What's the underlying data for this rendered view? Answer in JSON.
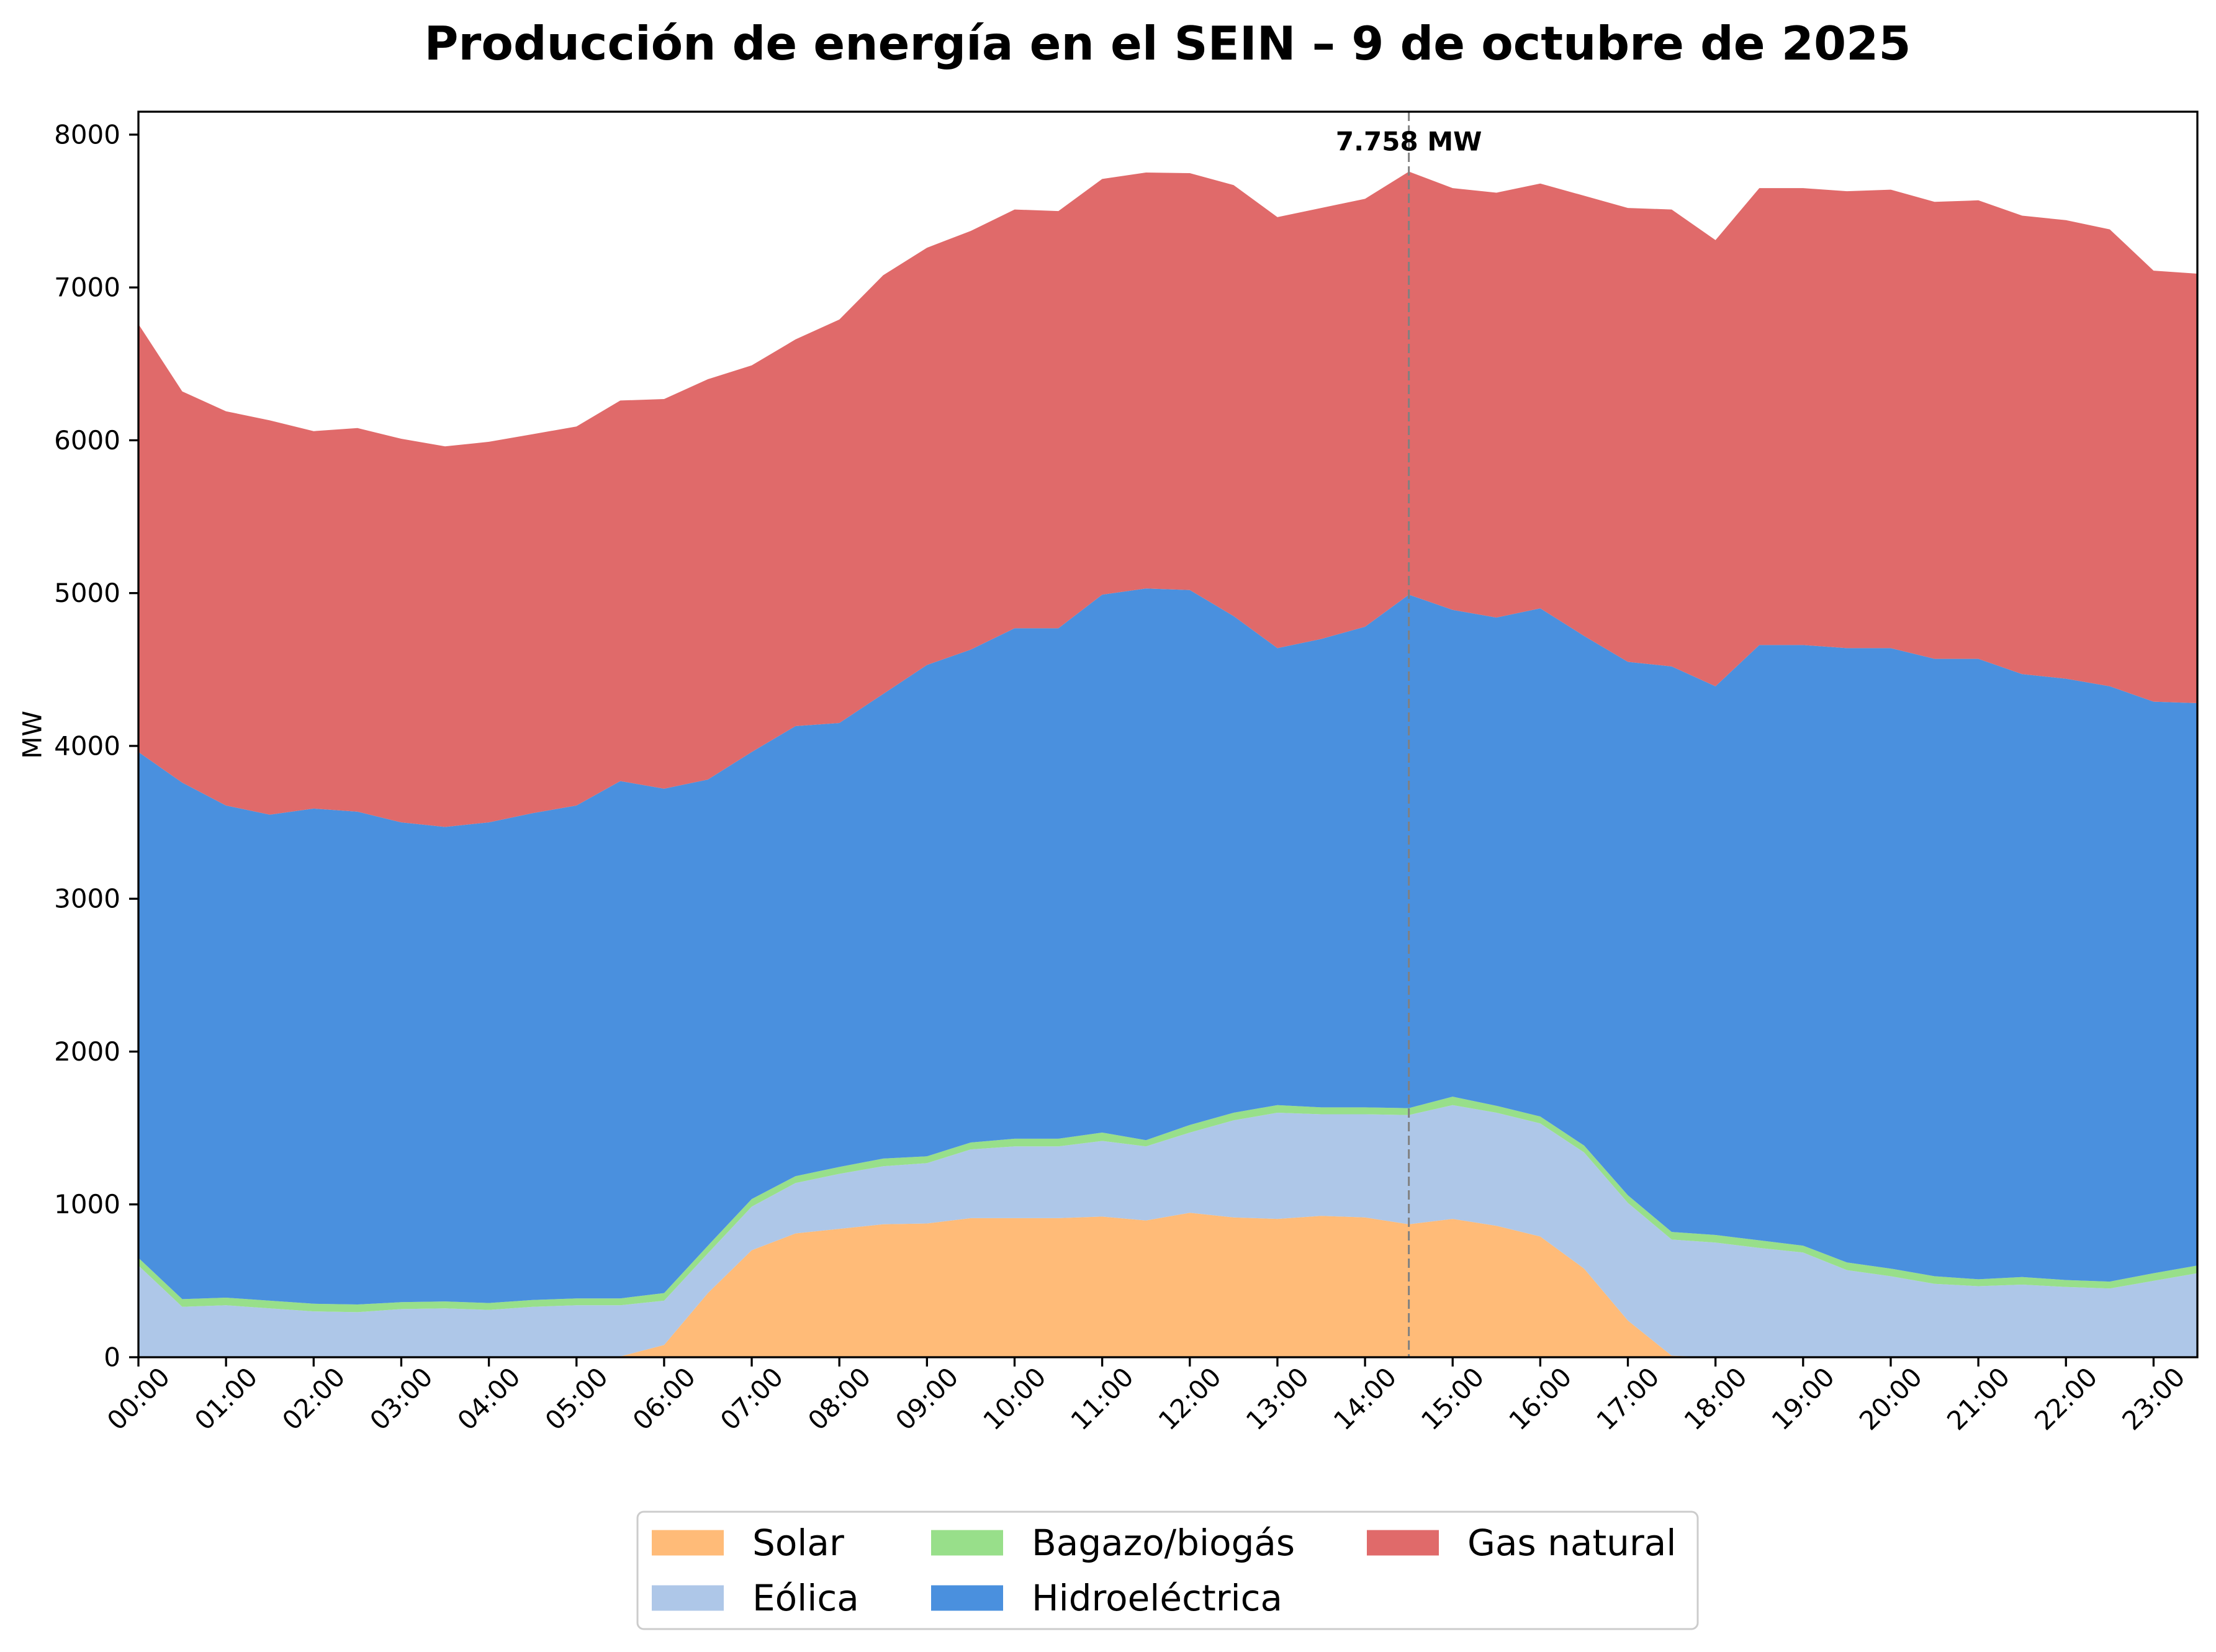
{
  "chart_data": {
    "type": "area",
    "stacked": true,
    "title": "Producción de energía en el SEIN – 9 de octubre de 2025",
    "ylabel": "MW",
    "xlim": [
      "00:00",
      "23:30"
    ],
    "ylim": [
      0,
      8150
    ],
    "grid": false,
    "legend_position": "bottom",
    "x_ticks": [
      "00:00",
      "01:00",
      "02:00",
      "03:00",
      "04:00",
      "05:00",
      "06:00",
      "07:00",
      "08:00",
      "09:00",
      "10:00",
      "11:00",
      "12:00",
      "13:00",
      "14:00",
      "15:00",
      "16:00",
      "17:00",
      "18:00",
      "19:00",
      "20:00",
      "21:00",
      "22:00",
      "23:00"
    ],
    "y_ticks": [
      0,
      1000,
      2000,
      3000,
      4000,
      5000,
      6000,
      7000,
      8000
    ],
    "x": [
      "00:00",
      "00:30",
      "01:00",
      "01:30",
      "02:00",
      "02:30",
      "03:00",
      "03:30",
      "04:00",
      "04:30",
      "05:00",
      "05:30",
      "06:00",
      "06:30",
      "07:00",
      "07:30",
      "08:00",
      "08:30",
      "09:00",
      "09:30",
      "10:00",
      "10:30",
      "11:00",
      "11:30",
      "12:00",
      "12:30",
      "13:00",
      "13:30",
      "14:00",
      "14:30",
      "15:00",
      "15:30",
      "16:00",
      "16:30",
      "17:00",
      "17:30",
      "18:00",
      "18:30",
      "19:00",
      "19:30",
      "20:00",
      "20:30",
      "21:00",
      "21:30",
      "22:00",
      "22:30",
      "23:00",
      "23:30"
    ],
    "series": [
      {
        "name": "Solar",
        "color": "#ffbb78",
        "values": [
          0,
          0,
          0,
          0,
          0,
          0,
          0,
          0,
          0,
          0,
          0,
          5,
          80,
          420,
          700,
          810,
          840,
          870,
          875,
          910,
          910,
          910,
          920,
          895,
          945,
          915,
          905,
          925,
          915,
          870,
          905,
          860,
          790,
          580,
          240,
          10,
          0,
          0,
          0,
          0,
          0,
          0,
          0,
          0,
          0,
          0,
          0,
          0
        ]
      },
      {
        "name": "Eólica",
        "color": "#aec7e8",
        "values": [
          600,
          330,
          340,
          320,
          300,
          295,
          315,
          320,
          310,
          330,
          340,
          335,
          290,
          260,
          285,
          330,
          360,
          380,
          395,
          450,
          470,
          470,
          495,
          485,
          525,
          635,
          695,
          665,
          675,
          715,
          745,
          740,
          740,
          760,
          770,
          760,
          750,
          715,
          685,
          570,
          530,
          480,
          465,
          475,
          460,
          450,
          500,
          550
        ]
      },
      {
        "name": "Bagazo/biogás",
        "color": "#98df8a",
        "values": [
          50,
          50,
          50,
          50,
          50,
          50,
          45,
          45,
          45,
          45,
          45,
          45,
          50,
          50,
          50,
          45,
          45,
          50,
          45,
          45,
          50,
          50,
          55,
          40,
          50,
          50,
          50,
          45,
          45,
          45,
          55,
          45,
          45,
          45,
          50,
          50,
          50,
          50,
          45,
          50,
          50,
          50,
          45,
          50,
          45,
          45,
          50,
          50
        ]
      },
      {
        "name": "Hidroeléctrica",
        "color": "#4a90de",
        "values": [
          3310,
          3380,
          3220,
          3180,
          3240,
          3225,
          3140,
          3105,
          3145,
          3185,
          3225,
          3385,
          3300,
          3050,
          2925,
          2945,
          2905,
          3040,
          3215,
          3225,
          3340,
          3340,
          3520,
          3610,
          3500,
          3250,
          2990,
          3065,
          3145,
          3360,
          3185,
          3195,
          3325,
          3335,
          3490,
          3700,
          3590,
          3895,
          3930,
          4020,
          4060,
          4040,
          4060,
          3945,
          3935,
          3895,
          3740,
          3680
        ]
      },
      {
        "name": "Gas natural",
        "color": "#e06a6a",
        "values": [
          2800,
          2560,
          2580,
          2580,
          2470,
          2510,
          2510,
          2490,
          2490,
          2480,
          2480,
          2490,
          2550,
          2620,
          2530,
          2530,
          2640,
          2740,
          2730,
          2740,
          2740,
          2730,
          2720,
          2722,
          2728,
          2820,
          2820,
          2820,
          2800,
          2768,
          2760,
          2780,
          2780,
          2880,
          2970,
          2990,
          2920,
          2990,
          2990,
          2990,
          3000,
          2990,
          3000,
          3000,
          3000,
          2990,
          2820,
          2810
        ]
      }
    ],
    "annotation": {
      "label": "7.758 MW",
      "x": "14:30",
      "y": 7758
    }
  }
}
